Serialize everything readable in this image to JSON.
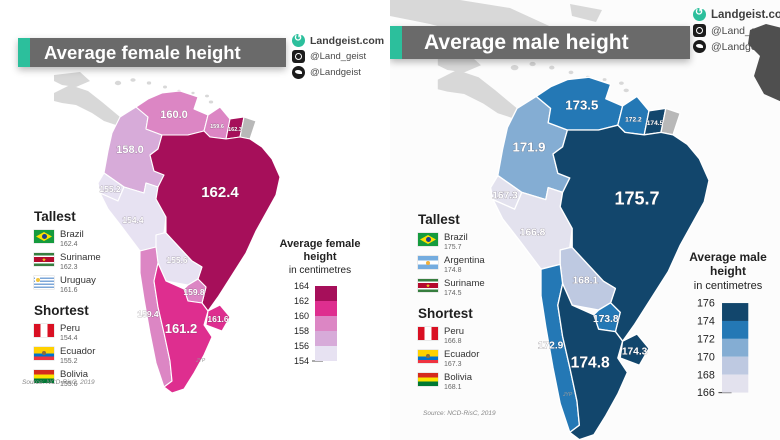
{
  "social": {
    "website": "Landgeist.com",
    "instagram": "@Land_geist",
    "twitter": "@Landgeist"
  },
  "signature": "JYP",
  "female": {
    "title": "Average female height",
    "accent_color": "#2cbf9c",
    "titlebar_color": "#6a6a6a",
    "values": {
      "venezuela": "160.0",
      "colombia": "158.0",
      "ecuador": "155.2",
      "peru": "154.4",
      "brazil": "162.4",
      "bolivia": "155.6",
      "paraguay": "159.8",
      "chile": "159.4",
      "argentina": "161.2",
      "uruguay": "161.6",
      "guyana": "159.6",
      "suriname": "162.3"
    },
    "country_colors": {
      "venezuela": "#dc86c4",
      "colombia": "#d7abd9",
      "ecuador": "#e7e2f2",
      "peru": "#e7e2f2",
      "brazil": "#a60f5a",
      "bolivia": "#e7e2f2",
      "paraguay": "#dc86c4",
      "chile": "#dc86c4",
      "argentina": "#de2e8f",
      "uruguay": "#de2e8f",
      "guyana": "#dc86c4",
      "suriname": "#a60f5a",
      "french_guiana": "#b8b8b8"
    },
    "land_color": "#d8d8d8",
    "tallest_label": "Tallest",
    "shortest_label": "Shortest",
    "tallest": [
      {
        "name": "Brazil",
        "value": "162.4",
        "flag": "brazil"
      },
      {
        "name": "Suriname",
        "value": "162.3",
        "flag": "suriname"
      },
      {
        "name": "Uruguay",
        "value": "161.6",
        "flag": "uruguay"
      }
    ],
    "shortest": [
      {
        "name": "Peru",
        "value": "154.4",
        "flag": "peru"
      },
      {
        "name": "Ecuador",
        "value": "155.2",
        "flag": "ecuador"
      },
      {
        "name": "Bolivia",
        "value": "155.6",
        "flag": "bolivia"
      }
    ],
    "scale": {
      "title1": "Average female",
      "title2": "height",
      "subtitle": "in centimetres",
      "ticks": [
        "164",
        "162",
        "160",
        "158",
        "156",
        "154"
      ],
      "colors": [
        "#a60f5a",
        "#de2e8f",
        "#dc86c4",
        "#d7abd9",
        "#e7e2f2"
      ]
    },
    "source": "Source: NCD-RisC, 2019"
  },
  "male": {
    "title": "Average male height",
    "accent_color": "#2cbf9c",
    "titlebar_color": "#6a6a6a",
    "values": {
      "venezuela": "173.5",
      "colombia": "171.9",
      "ecuador": "167.3",
      "peru": "166.8",
      "brazil": "175.7",
      "bolivia": "168.1",
      "paraguay": "173.8",
      "chile": "172.9",
      "argentina": "174.8",
      "uruguay": "174.3",
      "guyana": "172.2",
      "suriname": "174.5"
    },
    "country_colors": {
      "venezuela": "#2478b5",
      "colombia": "#84add3",
      "ecuador": "#e3e2ee",
      "peru": "#e3e2ee",
      "brazil": "#12466c",
      "bolivia": "#bec9e1",
      "paraguay": "#2478b5",
      "chile": "#2478b5",
      "argentina": "#12466c",
      "uruguay": "#12466c",
      "guyana": "#2478b5",
      "suriname": "#12466c",
      "french_guiana": "#b8b8b8"
    },
    "land_color": "#d8d8d8",
    "tallest_label": "Tallest",
    "shortest_label": "Shortest",
    "tallest": [
      {
        "name": "Brazil",
        "value": "175.7",
        "flag": "brazil"
      },
      {
        "name": "Argentina",
        "value": "174.8",
        "flag": "argentina"
      },
      {
        "name": "Suriname",
        "value": "174.5",
        "flag": "suriname"
      }
    ],
    "shortest": [
      {
        "name": "Peru",
        "value": "166.8",
        "flag": "peru"
      },
      {
        "name": "Ecuador",
        "value": "167.3",
        "flag": "ecuador"
      },
      {
        "name": "Bolivia",
        "value": "168.1",
        "flag": "bolivia"
      }
    ],
    "scale": {
      "title1": "Average male",
      "title2": "height",
      "subtitle": "in centimetres",
      "ticks": [
        "176",
        "174",
        "172",
        "170",
        "168",
        "166"
      ],
      "colors": [
        "#12466c",
        "#2478b5",
        "#84add3",
        "#bec9e1",
        "#e3e2ee"
      ]
    },
    "source": "Source: NCD-RisC, 2019"
  },
  "chart_data": [
    {
      "type": "heatmap",
      "title": "Average female height",
      "subtitle": "in centimetres",
      "legend_position": "bottom-right",
      "ylim": [
        154,
        164
      ],
      "categories": [
        "Venezuela",
        "Colombia",
        "Ecuador",
        "Peru",
        "Brazil",
        "Bolivia",
        "Paraguay",
        "Chile",
        "Argentina",
        "Uruguay",
        "Guyana",
        "Suriname"
      ],
      "values": [
        160.0,
        158.0,
        155.2,
        154.4,
        162.4,
        155.6,
        159.8,
        159.4,
        161.2,
        161.6,
        159.6,
        162.3
      ],
      "annotations": [
        "Tallest: Brazil 162.4, Suriname 162.3, Uruguay 161.6",
        "Shortest: Peru 154.4, Ecuador 155.2, Bolivia 155.6"
      ],
      "source": "NCD-RisC, 2019"
    },
    {
      "type": "heatmap",
      "title": "Average male height",
      "subtitle": "in centimetres",
      "legend_position": "bottom-right",
      "ylim": [
        166,
        176
      ],
      "categories": [
        "Venezuela",
        "Colombia",
        "Ecuador",
        "Peru",
        "Brazil",
        "Bolivia",
        "Paraguay",
        "Chile",
        "Argentina",
        "Uruguay",
        "Guyana",
        "Suriname"
      ],
      "values": [
        173.5,
        171.9,
        167.3,
        166.8,
        175.7,
        168.1,
        173.8,
        172.9,
        174.8,
        174.3,
        172.2,
        174.5
      ],
      "annotations": [
        "Tallest: Brazil 175.7, Argentina 174.8, Suriname 174.5",
        "Shortest: Peru 166.8, Ecuador 167.3, Bolivia 168.1"
      ],
      "source": "NCD-RisC, 2019"
    }
  ]
}
